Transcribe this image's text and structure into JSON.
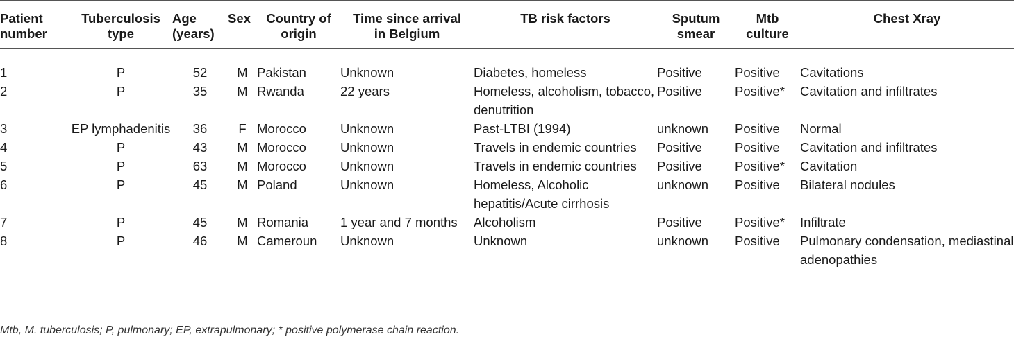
{
  "headers": [
    {
      "l1": "Patient",
      "l2": "number"
    },
    {
      "l1": "Tuberculosis",
      "l2": "type"
    },
    {
      "l1": "Age",
      "l2": "(years)"
    },
    {
      "l1": "Sex",
      "l2": ""
    },
    {
      "l1": "Country of",
      "l2": "origin"
    },
    {
      "l1": "Time since arrival",
      "l2": "in Belgium"
    },
    {
      "l1": "TB risk factors",
      "l2": ""
    },
    {
      "l1": "Sputum",
      "l2": "smear"
    },
    {
      "l1": "Mtb",
      "l2": "culture"
    },
    {
      "l1": "Chest Xray",
      "l2": ""
    }
  ],
  "rows": [
    {
      "patient": "1",
      "type": "P",
      "age": "52",
      "sex": "M",
      "country": "Pakistan",
      "time": "Unknown",
      "risk": "Diabetes, homeless",
      "smear": "Positive",
      "culture": "Positive",
      "xray": "Cavitations"
    },
    {
      "patient": "2",
      "type": "P",
      "age": "35",
      "sex": "M",
      "country": "Rwanda",
      "time": "22 years",
      "risk": "Homeless, alcoholism, tobacco, denutrition",
      "smear": "Positive",
      "culture": "Positive*",
      "xray": "Cavitation and infiltrates"
    },
    {
      "patient": "3",
      "type": "EP lymphadenitis",
      "age": "36",
      "sex": "F",
      "country": "Morocco",
      "time": "Unknown",
      "risk": "Past-LTBI (1994)",
      "smear": "unknown",
      "culture": "Positive",
      "xray": "Normal"
    },
    {
      "patient": "4",
      "type": "P",
      "age": "43",
      "sex": "M",
      "country": "Morocco",
      "time": "Unknown",
      "risk": "Travels in endemic countries",
      "smear": "Positive",
      "culture": "Positive",
      "xray": "Cavitation and infiltrates"
    },
    {
      "patient": "5",
      "type": "P",
      "age": "63",
      "sex": "M",
      "country": "Morocco",
      "time": "Unknown",
      "risk": "Travels in endemic countries",
      "smear": "Positive",
      "culture": "Positive*",
      "xray": "Cavitation"
    },
    {
      "patient": "6",
      "type": "P",
      "age": "45",
      "sex": "M",
      "country": "Poland",
      "time": "Unknown",
      "risk": "Homeless, Alcoholic hepatitis/Acute cirrhosis",
      "smear": "unknown",
      "culture": "Positive",
      "xray": "Bilateral nodules"
    },
    {
      "patient": "7",
      "type": "P",
      "age": "45",
      "sex": "M",
      "country": "Romania",
      "time": "1 year and 7 months",
      "risk": "Alcoholism",
      "smear": "Positive",
      "culture": "Positive*",
      "xray": "Infiltrate"
    },
    {
      "patient": "8",
      "type": "P",
      "age": "46",
      "sex": "M",
      "country": "Cameroun",
      "time": "Unknown",
      "risk": "Unknown",
      "smear": "unknown",
      "culture": "Positive",
      "xray": "Pulmonary condensation, mediastinal adenopathies"
    }
  ],
  "footnote": "Mtb, M. tuberculosis; P, pulmonary; EP, extrapulmonary; * positive polymerase chain reaction."
}
